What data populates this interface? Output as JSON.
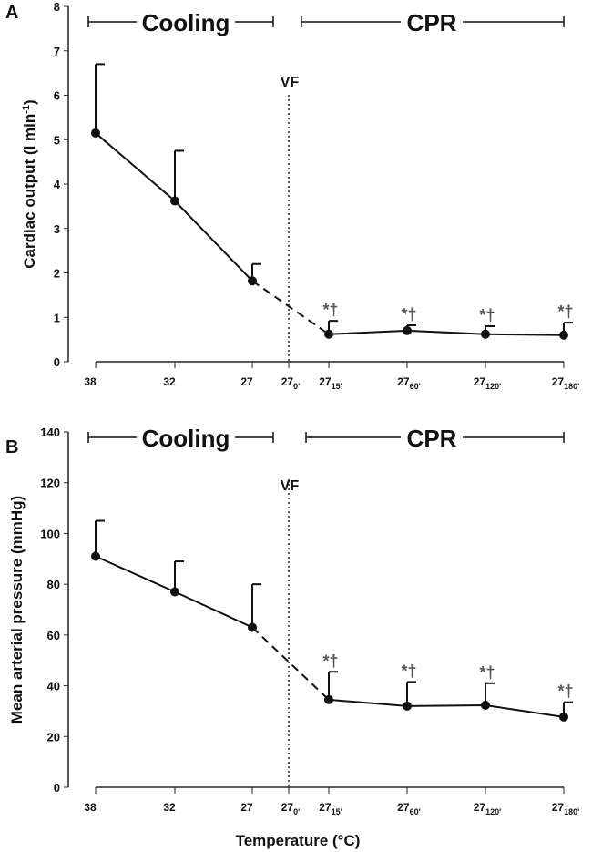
{
  "chart_data": [
    {
      "type": "line",
      "panel_label": "A",
      "ylabel": "Cardiac output (l min-1)",
      "ylabel_main": "Cardiac output (l min",
      "ylabel_sup": "-1",
      "ylabel_end": ")",
      "ylim": [
        0,
        8
      ],
      "yticks": [
        0,
        1,
        2,
        3,
        4,
        5,
        6,
        7,
        8
      ],
      "x_labels": [
        {
          "main": "38",
          "sub": ""
        },
        {
          "main": "32",
          "sub": ""
        },
        {
          "main": "27",
          "sub": ""
        },
        {
          "main": "27",
          "sub": "0'"
        },
        {
          "main": "27",
          "sub": "15'"
        },
        {
          "main": "27",
          "sub": "60'"
        },
        {
          "main": "27",
          "sub": "120'"
        },
        {
          "main": "27",
          "sub": "180'"
        }
      ],
      "values": [
        5.15,
        3.62,
        1.82,
        null,
        0.62,
        0.7,
        0.62,
        0.6
      ],
      "error_upper": [
        6.7,
        4.75,
        2.2,
        null,
        0.92,
        0.82,
        0.8,
        0.88
      ],
      "significance": [
        "",
        "",
        "",
        "",
        "*†",
        "*†",
        "*†",
        "*†"
      ],
      "phases": [
        {
          "label": "Cooling"
        },
        {
          "label": "CPR"
        }
      ],
      "event_label": "VF"
    },
    {
      "type": "line",
      "panel_label": "B",
      "ylabel": "Mean arterial pressure (mmHg)",
      "ylabel_main": "Mean arterial pressure (mmHg)",
      "ylabel_sup": "",
      "ylabel_end": "",
      "ylim": [
        0,
        140
      ],
      "yticks": [
        0,
        20,
        40,
        60,
        80,
        100,
        120,
        140
      ],
      "x_labels": [
        {
          "main": "38",
          "sub": ""
        },
        {
          "main": "32",
          "sub": ""
        },
        {
          "main": "27",
          "sub": ""
        },
        {
          "main": "27",
          "sub": "0'"
        },
        {
          "main": "27",
          "sub": "15'"
        },
        {
          "main": "27",
          "sub": "60'"
        },
        {
          "main": "27",
          "sub": "120'"
        },
        {
          "main": "27",
          "sub": "180'"
        }
      ],
      "values": [
        91,
        77,
        63,
        null,
        34.5,
        32,
        32.3,
        27.7
      ],
      "error_upper": [
        105,
        89,
        80,
        null,
        45.5,
        41.5,
        41,
        33.5
      ],
      "significance": [
        "",
        "",
        "",
        "",
        "*†",
        "*†",
        "*†",
        "*†"
      ],
      "phases": [
        {
          "label": "Cooling"
        },
        {
          "label": "CPR"
        }
      ],
      "event_label": "VF",
      "xlabel": "Temperature (°C)"
    }
  ]
}
